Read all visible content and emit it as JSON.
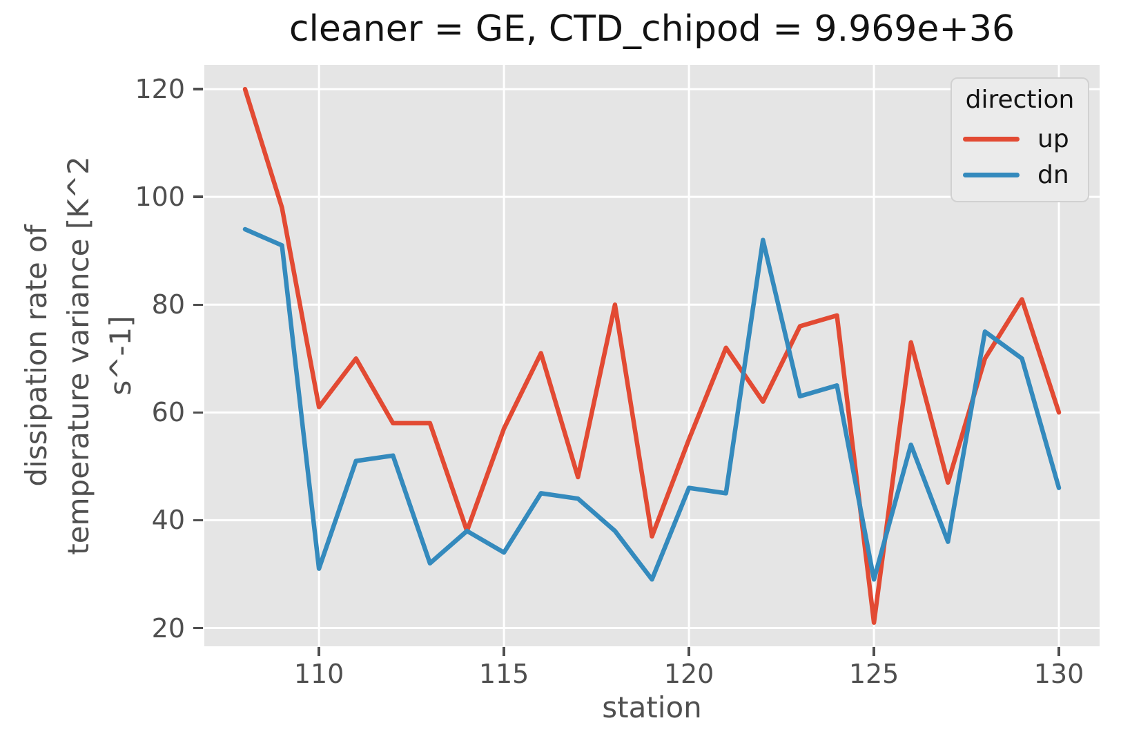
{
  "figure_title": "cleaner = GE, CTD_chipod = 9.969e+36",
  "chart_data": {
    "type": "line",
    "title": "cleaner = GE, CTD_chipod = 9.969e+36",
    "xlabel": "station",
    "ylabel": "dissipation rate of temperature variance [K^2 s^-1]",
    "ylabel_lines": [
      "dissipation rate of",
      "temperature variance [K^2",
      "s^-1]"
    ],
    "x": [
      108,
      109,
      110,
      111,
      112,
      113,
      114,
      115,
      116,
      117,
      118,
      119,
      120,
      121,
      122,
      123,
      124,
      125,
      126,
      127,
      128,
      129,
      130
    ],
    "series": [
      {
        "name": "up",
        "color": "#E24A33",
        "values": [
          120,
          98,
          61,
          70,
          58,
          58,
          38,
          57,
          71,
          48,
          80,
          37,
          55,
          72,
          62,
          76,
          78,
          21,
          73,
          47,
          70,
          81,
          60
        ]
      },
      {
        "name": "dn",
        "color": "#348ABD",
        "values": [
          94,
          91,
          31,
          51,
          52,
          32,
          38,
          34,
          45,
          44,
          38,
          29,
          46,
          45,
          92,
          63,
          65,
          29,
          54,
          36,
          75,
          70,
          46
        ]
      }
    ],
    "xticks": [
      110,
      115,
      120,
      125,
      130
    ],
    "yticks": [
      20,
      40,
      60,
      80,
      100,
      120
    ],
    "xlim": [
      106.9,
      131.1
    ],
    "ylim": [
      16.6,
      124.5
    ],
    "grid": true,
    "legend": {
      "title": "direction",
      "position": "upper right",
      "entries": [
        "up",
        "dn"
      ]
    },
    "colors": {
      "plot_bg": "#E5E5E5",
      "grid": "#FFFFFF",
      "tick_text": "#4F4F4F",
      "title_text": "#121212",
      "legend_text": "#141414"
    }
  }
}
